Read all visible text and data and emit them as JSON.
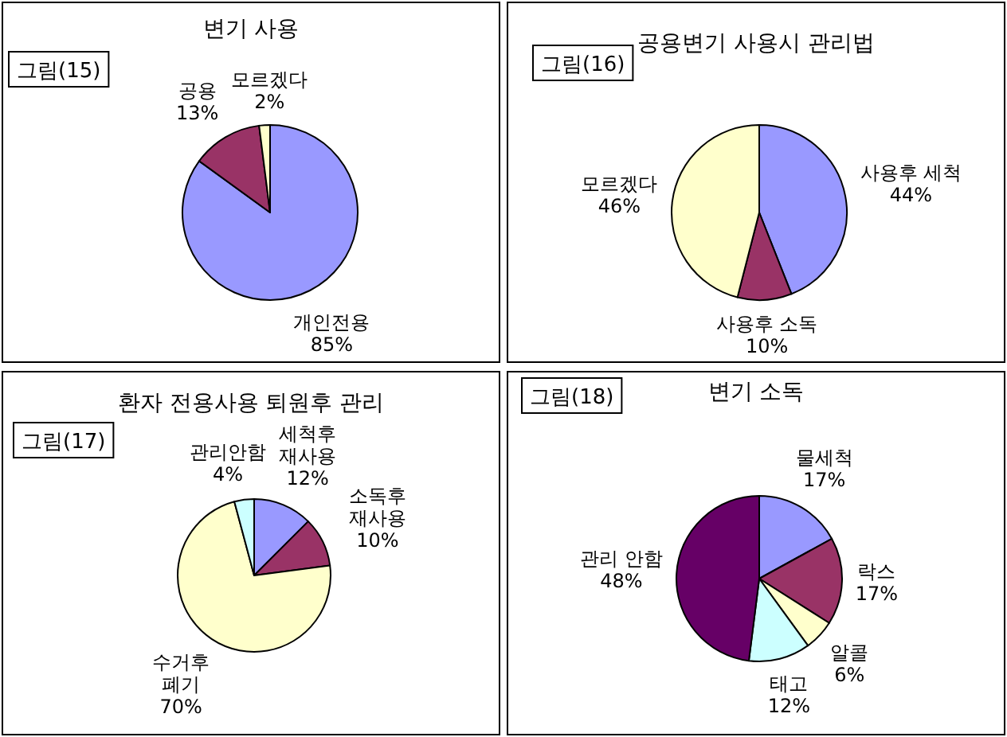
{
  "chart_data": [
    {
      "type": "pie",
      "title": "변기 사용",
      "annotations": [
        "그림(15)"
      ],
      "categories": [
        "개인전용",
        "공용",
        "모르겠다"
      ],
      "values": [
        85,
        13,
        2
      ],
      "colors": [
        "#9999ff",
        "#993366",
        "#ffffcc"
      ],
      "value_labels": [
        "85%",
        "13%",
        "2%"
      ]
    },
    {
      "type": "pie",
      "title": "공용변기 사용시 관리법",
      "annotations": [
        "그림(16)"
      ],
      "categories": [
        "사용후 세척",
        "사용후 소독",
        "모르겠다"
      ],
      "values": [
        44,
        10,
        46
      ],
      "colors": [
        "#9999ff",
        "#993366",
        "#ffffcc"
      ],
      "value_labels": [
        "44%",
        "10%",
        "46%"
      ]
    },
    {
      "type": "pie",
      "title": "환자 전용사용 퇴원후 관리",
      "annotations": [
        "그림(17)"
      ],
      "categories": [
        "세척후\n재사용",
        "소독후\n재사용",
        "수거후\n폐기",
        "관리안함"
      ],
      "values": [
        12,
        10,
        70,
        4
      ],
      "colors": [
        "#9999ff",
        "#993366",
        "#ffffcc",
        "#ccffff"
      ],
      "value_labels": [
        "12%",
        "10%",
        "70%",
        "4%"
      ]
    },
    {
      "type": "pie",
      "title": "변기 소독",
      "annotations": [
        "그림(18)"
      ],
      "categories": [
        "물세척",
        "락스",
        "알콜",
        "태고",
        "관리 안함"
      ],
      "values": [
        17,
        17,
        6,
        12,
        48
      ],
      "colors": [
        "#9999ff",
        "#993366",
        "#ffffcc",
        "#ccffff",
        "#660066"
      ],
      "value_labels": [
        "17%",
        "17%",
        "6%",
        "12%",
        "48%"
      ]
    }
  ]
}
